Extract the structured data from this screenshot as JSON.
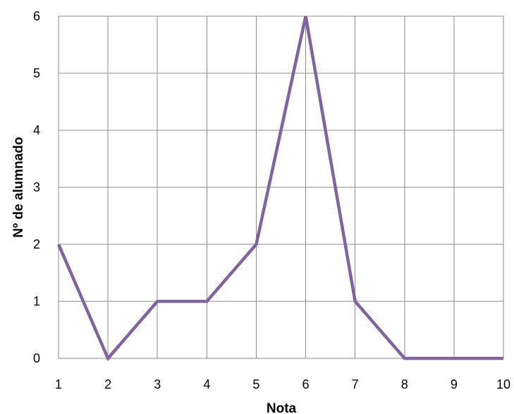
{
  "chart_data": {
    "type": "line",
    "x": [
      1,
      2,
      3,
      4,
      5,
      6,
      7,
      8,
      9,
      10
    ],
    "series": [
      {
        "values": [
          2,
          0,
          1,
          1,
          2,
          6,
          1,
          0,
          0,
          0
        ]
      }
    ],
    "x_ticks": [
      "1",
      "2",
      "3",
      "4",
      "5",
      "6",
      "7",
      "8",
      "9",
      "10"
    ],
    "y_ticks": [
      "0",
      "1",
      "2",
      "3",
      "4",
      "5",
      "6"
    ],
    "xlabel": "Nota",
    "ylabel": "Nº de alumnado",
    "xlim": [
      1,
      10
    ],
    "ylim": [
      0,
      6
    ],
    "grid": true,
    "legend": "none",
    "colors": {
      "series": "#8064a2",
      "grid": "#8c8c8c"
    }
  }
}
